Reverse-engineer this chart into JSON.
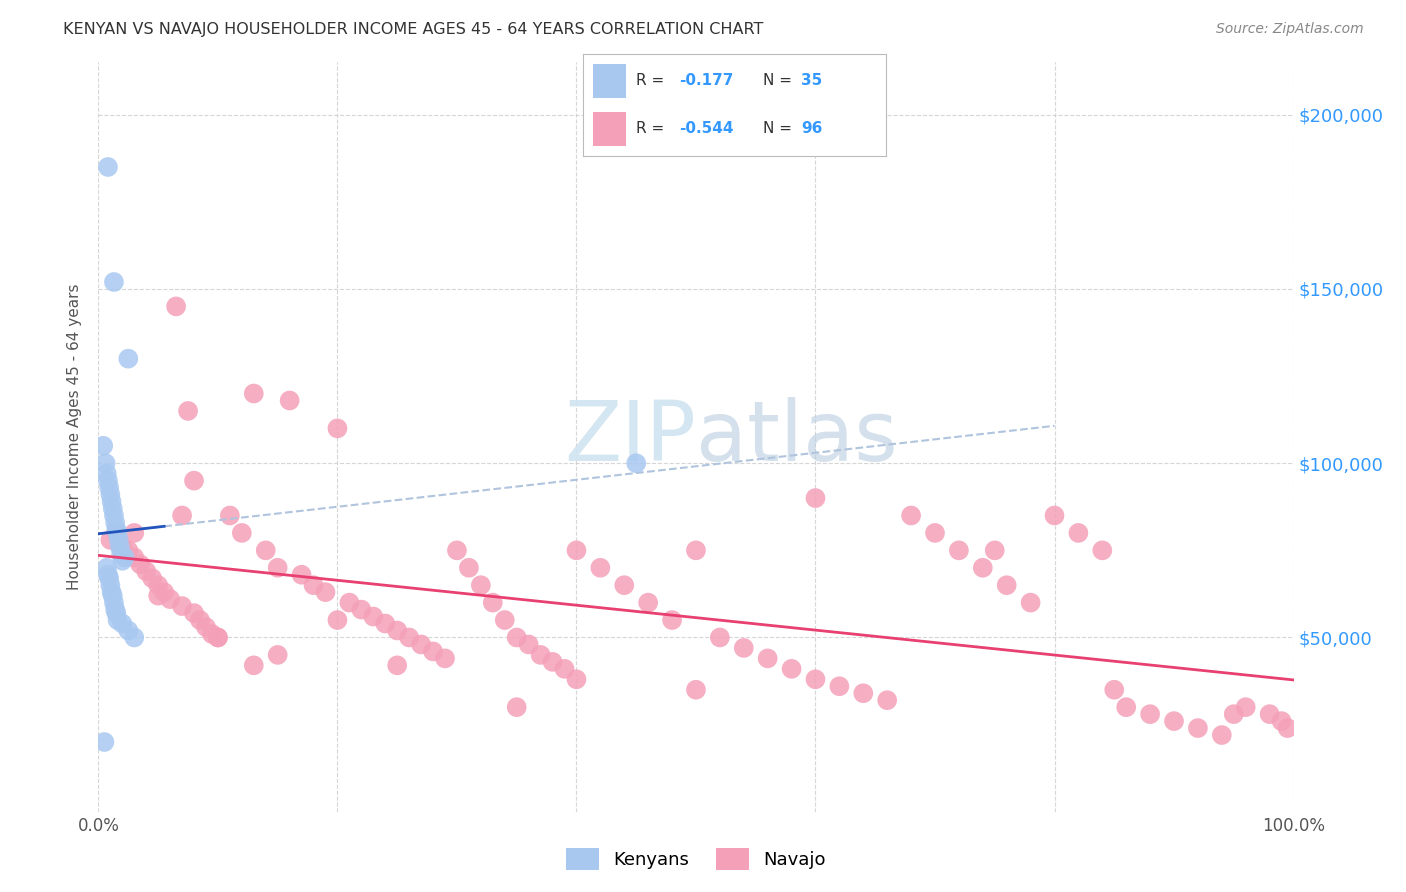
{
  "title": "KENYAN VS NAVAJO HOUSEHOLDER INCOME AGES 45 - 64 YEARS CORRELATION CHART",
  "source": "Source: ZipAtlas.com",
  "ylabel": "Householder Income Ages 45 - 64 years",
  "xlim": [
    0.0,
    1.0
  ],
  "ylim": [
    0,
    215000
  ],
  "ytick_values": [
    200000,
    150000,
    100000,
    50000
  ],
  "kenyan_color": "#a8c8f0",
  "navajo_color": "#f4a0b8",
  "kenyan_line_color": "#2255bb",
  "navajo_line_color": "#e84070",
  "kenyan_dash_color": "#b0c4de",
  "bg_color": "#ffffff",
  "grid_color": "#cccccc",
  "right_tick_color": "#3399ff",
  "watermark_color": "#d0e4f0",
  "kenyan_x": [
    0.008,
    0.013,
    0.025,
    0.45,
    0.005,
    0.004,
    0.006,
    0.007,
    0.008,
    0.009,
    0.01,
    0.011,
    0.012,
    0.013,
    0.014,
    0.015,
    0.016,
    0.017,
    0.018,
    0.019,
    0.02,
    0.007,
    0.008,
    0.009,
    0.01,
    0.011,
    0.012,
    0.013,
    0.014,
    0.015,
    0.016,
    0.02,
    0.025,
    0.03,
    0.022
  ],
  "kenyan_y": [
    185000,
    152000,
    130000,
    100000,
    20000,
    105000,
    100000,
    97000,
    95000,
    93000,
    91000,
    89000,
    87000,
    85000,
    83000,
    81000,
    80000,
    78000,
    76000,
    74000,
    72000,
    70000,
    68000,
    67000,
    65000,
    63000,
    62000,
    60000,
    58000,
    57000,
    55000,
    54000,
    52000,
    50000,
    73000
  ],
  "navajo_x": [
    0.01,
    0.015,
    0.02,
    0.025,
    0.03,
    0.035,
    0.04,
    0.045,
    0.05,
    0.055,
    0.06,
    0.065,
    0.07,
    0.075,
    0.08,
    0.085,
    0.09,
    0.095,
    0.1,
    0.11,
    0.12,
    0.13,
    0.14,
    0.15,
    0.16,
    0.17,
    0.18,
    0.19,
    0.2,
    0.21,
    0.22,
    0.23,
    0.24,
    0.25,
    0.26,
    0.27,
    0.28,
    0.29,
    0.3,
    0.31,
    0.32,
    0.33,
    0.34,
    0.35,
    0.36,
    0.37,
    0.38,
    0.39,
    0.4,
    0.42,
    0.44,
    0.46,
    0.48,
    0.5,
    0.52,
    0.54,
    0.56,
    0.58,
    0.6,
    0.62,
    0.64,
    0.66,
    0.68,
    0.7,
    0.72,
    0.74,
    0.76,
    0.78,
    0.8,
    0.82,
    0.84,
    0.86,
    0.88,
    0.9,
    0.92,
    0.94,
    0.96,
    0.98,
    0.99,
    0.995,
    0.07,
    0.13,
    0.2,
    0.35,
    0.5,
    0.05,
    0.1,
    0.15,
    0.25,
    0.4,
    0.6,
    0.75,
    0.85,
    0.95,
    0.03,
    0.08
  ],
  "navajo_y": [
    78000,
    80000,
    76000,
    75000,
    73000,
    71000,
    69000,
    67000,
    65000,
    63000,
    61000,
    145000,
    59000,
    115000,
    57000,
    55000,
    53000,
    51000,
    50000,
    85000,
    80000,
    120000,
    75000,
    70000,
    118000,
    68000,
    65000,
    63000,
    110000,
    60000,
    58000,
    56000,
    54000,
    52000,
    50000,
    48000,
    46000,
    44000,
    75000,
    70000,
    65000,
    60000,
    55000,
    50000,
    48000,
    45000,
    43000,
    41000,
    75000,
    70000,
    65000,
    60000,
    55000,
    75000,
    50000,
    47000,
    44000,
    41000,
    38000,
    36000,
    34000,
    32000,
    85000,
    80000,
    75000,
    70000,
    65000,
    60000,
    85000,
    80000,
    75000,
    30000,
    28000,
    26000,
    24000,
    22000,
    30000,
    28000,
    26000,
    24000,
    85000,
    42000,
    55000,
    30000,
    35000,
    62000,
    50000,
    45000,
    42000,
    38000,
    90000,
    75000,
    35000,
    28000,
    80000,
    95000
  ]
}
